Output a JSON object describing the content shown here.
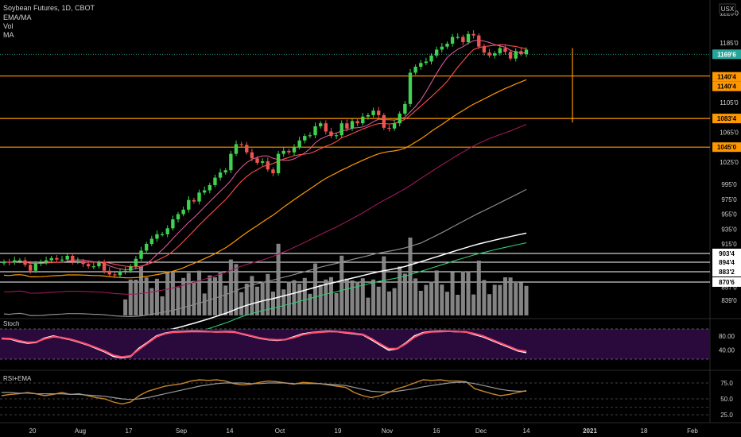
{
  "header": {
    "symbol_line": "Soybean Futures, 1D, CBOT",
    "indicators": [
      "EMA/MA",
      "Vol",
      "MA"
    ],
    "currency": "USX"
  },
  "colors": {
    "bg": "#000000",
    "up": "#26a69a",
    "up_bright": "#3fd14f",
    "down": "#ef5350",
    "axis_text": "#cfcfcf",
    "orange": "#ff9800",
    "white": "#ffffff",
    "gray_ma": "#8c8c8c",
    "pink_ma": "#e85fa3",
    "red_ma": "#ff4b4b",
    "maroon_ma": "#a0185a",
    "green_ma": "#2ecc71",
    "volume": "#8a8a8a",
    "stoch_bg": "#2a0a3d",
    "stoch_k": "#ffffff",
    "stoch_d": "#ff4b6b",
    "rsi": "#c8862a",
    "rsi_ema": "#9a9a9a",
    "last_price_bg": "#26a69a"
  },
  "chart_data": [
    {
      "type": "candlestick",
      "title": "Soybean Futures, 1D, CBOT",
      "ylim": [
        837,
        1225
      ],
      "y_ticks": [
        "1225'0",
        "1185'0",
        "1105'0",
        "1065'0",
        "1025'0",
        "995'0",
        "975'0",
        "955'0",
        "935'0",
        "915'0",
        "857'0",
        "839'0"
      ],
      "y_tick_values": [
        1225,
        1185,
        1105,
        1065,
        1025,
        995,
        975,
        955,
        935,
        915,
        857,
        839
      ],
      "x_ticks": [
        "20",
        "Aug",
        "17",
        "Sep",
        "14",
        "Oct",
        "19",
        "Nov",
        "16",
        "Dec",
        "14",
        "2021",
        "18",
        "Feb"
      ],
      "candles_close": [
        891,
        890,
        893,
        893,
        887,
        879,
        889,
        890,
        893,
        896,
        894,
        894,
        899,
        891,
        892,
        888,
        885,
        885,
        890,
        879,
        874,
        873,
        878,
        879,
        885,
        895,
        906,
        915,
        922,
        928,
        928,
        936,
        948,
        955,
        961,
        974,
        972,
        984,
        987,
        994,
        1004,
        1011,
        1014,
        1036,
        1049,
        1048,
        1038,
        1030,
        1024,
        1026,
        1015,
        1010,
        1036,
        1040,
        1038,
        1045,
        1054,
        1060,
        1061,
        1073,
        1077,
        1066,
        1060,
        1061,
        1077,
        1070,
        1080,
        1077,
        1086,
        1088,
        1094,
        1088,
        1071,
        1070,
        1077,
        1090,
        1103,
        1145,
        1153,
        1158,
        1160,
        1168,
        1176,
        1180,
        1184,
        1193,
        1193,
        1186,
        1197,
        1195,
        1180,
        1172,
        1168,
        1171,
        1178,
        1173,
        1164,
        1174,
        1170,
        1176
      ],
      "price_lines": [
        {
          "label": "1140'4",
          "value": 1140.5
        },
        {
          "label": "1083'4",
          "value": 1083.5
        },
        {
          "label": "1045'0",
          "value": 1045
        }
      ],
      "price_box_extra": "1140'4",
      "last_price": {
        "label": "1169'6",
        "value": 1169.75
      },
      "volume_levels": [
        {
          "label": "903'4",
          "value": 903.5
        },
        {
          "label": "894'4",
          "value": 894.5
        },
        {
          "label": "883'2",
          "value": 883.25
        },
        {
          "label": "870'6",
          "value": 870.75
        }
      ]
    },
    {
      "type": "line",
      "title": "Stoch",
      "ylim": [
        0,
        100
      ],
      "y_ticks": [
        "80.00",
        "40.00"
      ],
      "y_tick_values": [
        80,
        40
      ],
      "series": [
        {
          "name": "",
          "values": [
            73,
            72,
            65,
            60,
            62,
            74,
            80,
            75,
            70,
            63,
            55,
            45,
            35,
            22,
            18,
            22,
            45,
            62,
            80,
            88,
            92,
            93,
            94,
            94,
            93,
            92,
            93,
            92,
            86,
            80,
            74,
            70,
            68,
            70,
            78,
            86,
            90,
            92,
            94,
            93,
            90,
            87,
            84,
            70,
            55,
            40,
            44,
            60,
            80,
            90,
            93,
            94,
            94,
            93,
            92,
            85,
            78,
            68,
            58,
            48,
            38,
            33
          ]
        },
        {
          "name": "",
          "values": [
            74,
            73,
            67,
            62,
            63,
            72,
            78,
            76,
            71,
            64,
            56,
            47,
            37,
            25,
            20,
            23,
            42,
            60,
            78,
            87,
            91,
            92,
            93,
            93,
            93,
            92,
            92,
            91,
            87,
            81,
            75,
            71,
            69,
            70,
            76,
            84,
            89,
            91,
            93,
            93,
            91,
            88,
            85,
            73,
            58,
            44,
            44,
            58,
            77,
            88,
            92,
            93,
            94,
            93,
            92,
            87,
            80,
            70,
            60,
            50,
            40,
            36
          ]
        }
      ]
    },
    {
      "type": "line",
      "title": "RSI+EMA",
      "ylim": [
        0,
        100
      ],
      "y_ticks": [
        "75.0",
        "50.0",
        "25.0"
      ],
      "y_tick_values": [
        75,
        50,
        25
      ],
      "series": [
        {
          "name": "",
          "values": [
            55,
            57,
            58,
            60,
            58,
            55,
            57,
            60,
            57,
            58,
            55,
            52,
            50,
            45,
            42,
            45,
            55,
            62,
            66,
            70,
            72,
            74,
            78,
            80,
            79,
            80,
            78,
            74,
            72,
            73,
            76,
            78,
            77,
            75,
            73,
            76,
            75,
            74,
            72,
            70,
            68,
            60,
            55,
            52,
            55,
            60,
            66,
            70,
            75,
            80,
            79,
            80,
            78,
            78,
            77,
            66,
            62,
            58,
            55,
            57,
            60,
            63
          ]
        },
        {
          "name": "",
          "values": [
            60,
            60,
            59,
            59,
            58,
            58,
            58,
            58,
            57,
            57,
            56,
            55,
            54,
            52,
            50,
            49,
            50,
            52,
            55,
            58,
            61,
            64,
            67,
            70,
            72,
            74,
            75,
            75,
            75,
            74,
            74,
            75,
            75,
            75,
            74,
            74,
            74,
            74,
            73,
            72,
            71,
            68,
            65,
            62,
            61,
            61,
            62,
            64,
            66,
            69,
            71,
            73,
            75,
            76,
            76,
            74,
            71,
            68,
            65,
            63,
            62,
            62
          ]
        }
      ]
    }
  ]
}
